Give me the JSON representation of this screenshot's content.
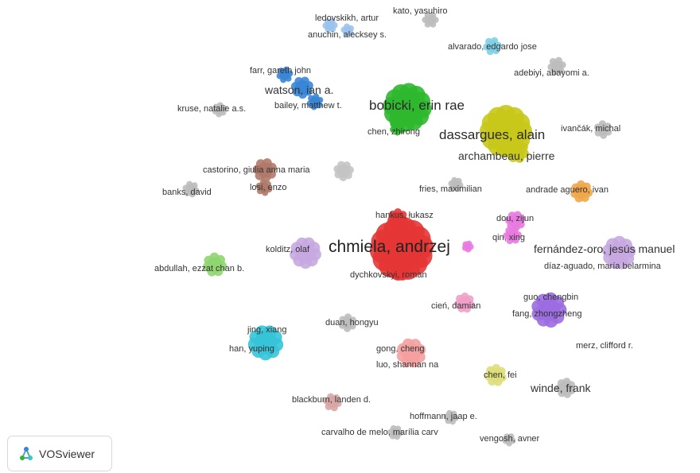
{
  "nodes": [
    {
      "label": "kato, yasuhiro",
      "color": "#bdbdbd"
    },
    {
      "label": "ledovskikh, artur",
      "color": "#9cc3ec"
    },
    {
      "label": "anuchin, alecksey s.",
      "color": "#9cc3ec"
    },
    {
      "label": "alvarado, edgardo jose",
      "color": "#7fd0e6"
    },
    {
      "label": "adebiyi, abayomi a.",
      "color": "#bdbdbd"
    },
    {
      "label": "farr, gareth john",
      "color": "#3a86d6"
    },
    {
      "label": "watson, ian a.",
      "color": "#3a86d6"
    },
    {
      "label": "bailey, matthew t.",
      "color": "#3a86d6"
    },
    {
      "label": "kruse, natalie a.s.",
      "color": "#bdbdbd"
    },
    {
      "label": "bobicki, erin rae",
      "color": "#2eb82e"
    },
    {
      "label": "chen, zhirong",
      "color": "#2eb82e"
    },
    {
      "label": "dassargues, alain",
      "color": "#c8c81a"
    },
    {
      "label": "archambeau, pierre",
      "color": "#c8c81a"
    },
    {
      "label": "ivančák, michal",
      "color": "#bdbdbd"
    },
    {
      "label": "castorino, giulia anna maria",
      "color": "#b07a6a"
    },
    {
      "label": "losi, enzo",
      "color": "#b07a6a"
    },
    {
      "label": "",
      "color": "#c4c4c4"
    },
    {
      "label": "banks, david",
      "color": "#bdbdbd"
    },
    {
      "label": "fries, maximilian",
      "color": "#bdbdbd"
    },
    {
      "label": "andrade aguero, ivan",
      "color": "#f0a64a"
    },
    {
      "label": "hankus, łukasz",
      "color": "#e53535"
    },
    {
      "label": "chmiela, andrzej",
      "color": "#e53535"
    },
    {
      "label": "dychkovskyi, roman",
      "color": "#e53535"
    },
    {
      "label": "dou, zijun",
      "color": "#e87ae0"
    },
    {
      "label": "qin, xing",
      "color": "#e87ae0"
    },
    {
      "label": "fernández-oro, jesús manuel",
      "color": "#c7a8e0"
    },
    {
      "label": "díaz-aguado, maría belarmina",
      "color": "#c7a8e0"
    },
    {
      "label": "kolditz, olaf",
      "color": "#f08a2a"
    },
    {
      "label": "abdullah, ezzat chan b.",
      "color": "#8fd670"
    },
    {
      "label": "cień, damian",
      "color": "#f0a0c8"
    },
    {
      "label": "guo, chengbin",
      "color": "#9b6de0"
    },
    {
      "label": "fang, zhongzheng",
      "color": "#9b6de0"
    },
    {
      "label": "duan, hongyu",
      "color": "#bdbdbd"
    },
    {
      "label": "jing, xiang",
      "color": "#36c4d8"
    },
    {
      "label": "han, yuping",
      "color": "#36c4d8"
    },
    {
      "label": "gong, cheng",
      "color": "#f4a0a0"
    },
    {
      "label": "luo, shannan na",
      "color": "#f4a0a0"
    },
    {
      "label": "merz, clifford r.",
      "color": "#bdbdbd"
    },
    {
      "label": "chen, fei",
      "color": "#dede7a"
    },
    {
      "label": "winde, frank",
      "color": "#bdbdbd"
    },
    {
      "label": "blackburn, landen d.",
      "color": "#d9a6a6"
    },
    {
      "label": "hoffmann, jaap e.",
      "color": "#bdbdbd"
    },
    {
      "label": "carvalho de melo, marília carv",
      "color": "#bdbdbd"
    },
    {
      "label": "vengosh, avner",
      "color": "#bdbdbd"
    }
  ],
  "logo": {
    "text": "VOSviewer",
    "icon": "vosviewer-logo-icon"
  }
}
